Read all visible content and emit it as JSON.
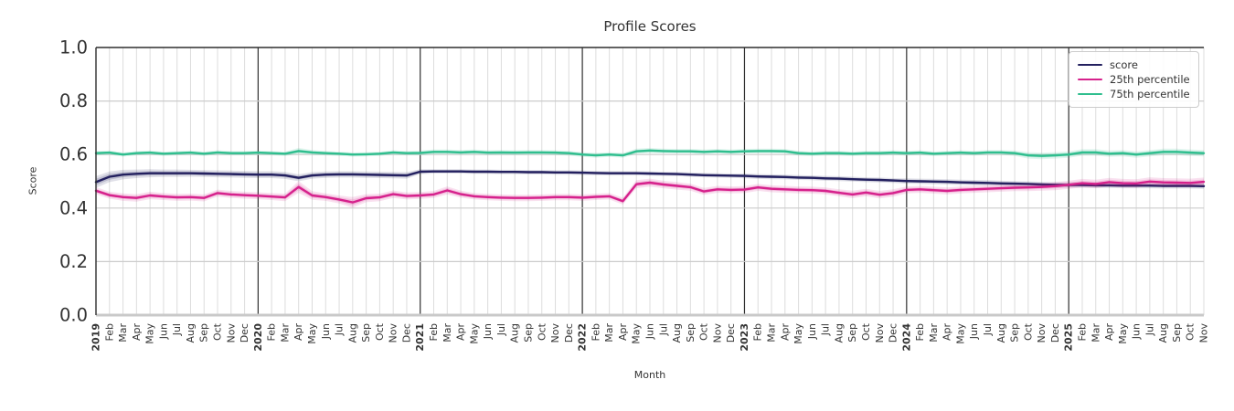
{
  "chart_data": {
    "type": "line",
    "title": "Profile Scores",
    "xlabel": "Month",
    "ylabel": "Score",
    "ylim": [
      0.0,
      1.0
    ],
    "yticks": [
      "0.0",
      "0.2",
      "0.4",
      "0.6",
      "0.8",
      "1.0"
    ],
    "grid": true,
    "legend_position": "upper right",
    "axis_colors": {
      "grid_vertical_light": "#dcdcdc",
      "grid_horizontal": "#cccccc",
      "year_line_dark": "#2e2e2e",
      "baseline": "#c9c9c9",
      "tick_text": "#333333"
    },
    "x_labels": [
      "2019",
      "Feb",
      "Mar",
      "Apr",
      "May",
      "Jun",
      "Jul",
      "Aug",
      "Sep",
      "Oct",
      "Nov",
      "Dec",
      "2020",
      "Feb",
      "Mar",
      "Apr",
      "May",
      "Jun",
      "Jul",
      "Aug",
      "Sep",
      "Oct",
      "Nov",
      "Dec",
      "2021",
      "Feb",
      "Mar",
      "Apr",
      "May",
      "Jun",
      "Jul",
      "Aug",
      "Sep",
      "Oct",
      "Nov",
      "Dec",
      "2022",
      "Feb",
      "Mar",
      "Apr",
      "May",
      "Jun",
      "Jul",
      "Aug",
      "Sep",
      "Oct",
      "Nov",
      "Dec",
      "2023",
      "Feb",
      "Mar",
      "Apr",
      "May",
      "Jun",
      "Jul",
      "Aug",
      "Sep",
      "Oct",
      "Nov",
      "Dec",
      "2024",
      "Feb",
      "Mar",
      "Apr",
      "May",
      "Jun",
      "Jul",
      "Aug",
      "Sep",
      "Oct",
      "Nov",
      "Dec",
      "2025",
      "Feb",
      "Mar",
      "Apr",
      "May",
      "Jun",
      "Jul",
      "Aug",
      "Sep",
      "Oct",
      "Nov"
    ],
    "series": [
      {
        "name": "score",
        "color": "#23205f",
        "values": [
          0.497,
          0.517,
          0.525,
          0.528,
          0.53,
          0.53,
          0.53,
          0.53,
          0.529,
          0.528,
          0.527,
          0.526,
          0.525,
          0.525,
          0.522,
          0.513,
          0.522,
          0.525,
          0.526,
          0.526,
          0.525,
          0.524,
          0.523,
          0.522,
          0.536,
          0.537,
          0.537,
          0.537,
          0.536,
          0.536,
          0.535,
          0.535,
          0.534,
          0.534,
          0.533,
          0.533,
          0.532,
          0.531,
          0.53,
          0.53,
          0.53,
          0.529,
          0.528,
          0.527,
          0.525,
          0.523,
          0.522,
          0.521,
          0.52,
          0.518,
          0.517,
          0.516,
          0.514,
          0.513,
          0.511,
          0.51,
          0.508,
          0.506,
          0.505,
          0.503,
          0.501,
          0.5,
          0.499,
          0.498,
          0.496,
          0.495,
          0.494,
          0.492,
          0.491,
          0.49,
          0.488,
          0.487,
          0.486,
          0.486,
          0.485,
          0.485,
          0.484,
          0.484,
          0.484,
          0.483,
          0.483,
          0.483,
          0.482
        ],
        "band": [
          0.022,
          0.02,
          0.018,
          0.016,
          0.015,
          0.014,
          0.014,
          0.013,
          0.013,
          0.013,
          0.013,
          0.013,
          0.013,
          0.013,
          0.013,
          0.013,
          0.012,
          0.012,
          0.012,
          0.012,
          0.012,
          0.012,
          0.012,
          0.012,
          0.009,
          0.008,
          0.008,
          0.008,
          0.008,
          0.008,
          0.008,
          0.008,
          0.008,
          0.008,
          0.008,
          0.008,
          0.008,
          0.008,
          0.008,
          0.008,
          0.008,
          0.008,
          0.008,
          0.008,
          0.008,
          0.008,
          0.008,
          0.008,
          0.009,
          0.009,
          0.009,
          0.009,
          0.009,
          0.009,
          0.009,
          0.009,
          0.009,
          0.009,
          0.009,
          0.009,
          0.01,
          0.01,
          0.01,
          0.01,
          0.01,
          0.01,
          0.01,
          0.01,
          0.01,
          0.01,
          0.01,
          0.01,
          0.01,
          0.01,
          0.01,
          0.01,
          0.01,
          0.01,
          0.01,
          0.01,
          0.01,
          0.01,
          0.01
        ]
      },
      {
        "name": "25th percentile",
        "color": "#d6218c",
        "values": [
          0.465,
          0.448,
          0.441,
          0.438,
          0.447,
          0.443,
          0.44,
          0.441,
          0.438,
          0.456,
          0.451,
          0.448,
          0.446,
          0.443,
          0.44,
          0.479,
          0.447,
          0.441,
          0.432,
          0.421,
          0.437,
          0.44,
          0.452,
          0.445,
          0.447,
          0.451,
          0.466,
          0.452,
          0.444,
          0.441,
          0.439,
          0.438,
          0.438,
          0.439,
          0.441,
          0.441,
          0.439,
          0.442,
          0.444,
          0.426,
          0.489,
          0.495,
          0.488,
          0.483,
          0.478,
          0.462,
          0.47,
          0.468,
          0.469,
          0.477,
          0.472,
          0.47,
          0.468,
          0.467,
          0.464,
          0.457,
          0.451,
          0.458,
          0.45,
          0.456,
          0.468,
          0.47,
          0.467,
          0.464,
          0.468,
          0.47,
          0.472,
          0.474,
          0.476,
          0.477,
          0.479,
          0.482,
          0.487,
          0.493,
          0.49,
          0.497,
          0.493,
          0.492,
          0.499,
          0.496,
          0.495,
          0.494,
          0.498
        ],
        "band": [
          0.013,
          0.013,
          0.014,
          0.014,
          0.014,
          0.013,
          0.013,
          0.013,
          0.013,
          0.013,
          0.013,
          0.013,
          0.013,
          0.013,
          0.014,
          0.022,
          0.016,
          0.014,
          0.015,
          0.02,
          0.015,
          0.014,
          0.014,
          0.013,
          0.013,
          0.013,
          0.015,
          0.013,
          0.012,
          0.012,
          0.012,
          0.012,
          0.012,
          0.012,
          0.012,
          0.012,
          0.012,
          0.012,
          0.012,
          0.013,
          0.015,
          0.015,
          0.014,
          0.014,
          0.013,
          0.013,
          0.013,
          0.013,
          0.013,
          0.013,
          0.013,
          0.013,
          0.013,
          0.013,
          0.013,
          0.013,
          0.014,
          0.014,
          0.014,
          0.014,
          0.013,
          0.013,
          0.013,
          0.013,
          0.013,
          0.013,
          0.013,
          0.013,
          0.013,
          0.014,
          0.014,
          0.015,
          0.015,
          0.016,
          0.016,
          0.016,
          0.016,
          0.016,
          0.016,
          0.016,
          0.016,
          0.016,
          0.016
        ]
      },
      {
        "name": "75th percentile",
        "color": "#2fbe8e",
        "values": [
          0.605,
          0.607,
          0.6,
          0.605,
          0.607,
          0.603,
          0.605,
          0.607,
          0.603,
          0.608,
          0.605,
          0.605,
          0.607,
          0.605,
          0.603,
          0.613,
          0.608,
          0.605,
          0.603,
          0.6,
          0.601,
          0.603,
          0.608,
          0.605,
          0.606,
          0.61,
          0.61,
          0.608,
          0.61,
          0.607,
          0.608,
          0.607,
          0.608,
          0.608,
          0.607,
          0.605,
          0.6,
          0.597,
          0.6,
          0.597,
          0.612,
          0.615,
          0.613,
          0.612,
          0.612,
          0.61,
          0.612,
          0.61,
          0.612,
          0.613,
          0.613,
          0.612,
          0.605,
          0.603,
          0.605,
          0.605,
          0.603,
          0.605,
          0.605,
          0.607,
          0.605,
          0.607,
          0.603,
          0.605,
          0.607,
          0.605,
          0.608,
          0.608,
          0.605,
          0.597,
          0.595,
          0.597,
          0.6,
          0.608,
          0.608,
          0.603,
          0.605,
          0.6,
          0.605,
          0.61,
          0.61,
          0.607,
          0.605
        ],
        "band": [
          0.008,
          0.008,
          0.008,
          0.008,
          0.008,
          0.008,
          0.008,
          0.008,
          0.008,
          0.008,
          0.008,
          0.008,
          0.008,
          0.008,
          0.008,
          0.012,
          0.009,
          0.008,
          0.008,
          0.008,
          0.008,
          0.008,
          0.008,
          0.008,
          0.009,
          0.009,
          0.009,
          0.009,
          0.009,
          0.009,
          0.009,
          0.009,
          0.009,
          0.009,
          0.009,
          0.009,
          0.009,
          0.009,
          0.009,
          0.009,
          0.01,
          0.01,
          0.009,
          0.009,
          0.009,
          0.009,
          0.009,
          0.009,
          0.009,
          0.009,
          0.009,
          0.009,
          0.009,
          0.009,
          0.009,
          0.009,
          0.009,
          0.009,
          0.009,
          0.009,
          0.009,
          0.009,
          0.009,
          0.009,
          0.009,
          0.009,
          0.009,
          0.009,
          0.01,
          0.012,
          0.012,
          0.012,
          0.012,
          0.012,
          0.012,
          0.012,
          0.012,
          0.012,
          0.012,
          0.012,
          0.012,
          0.012,
          0.012
        ]
      }
    ]
  }
}
